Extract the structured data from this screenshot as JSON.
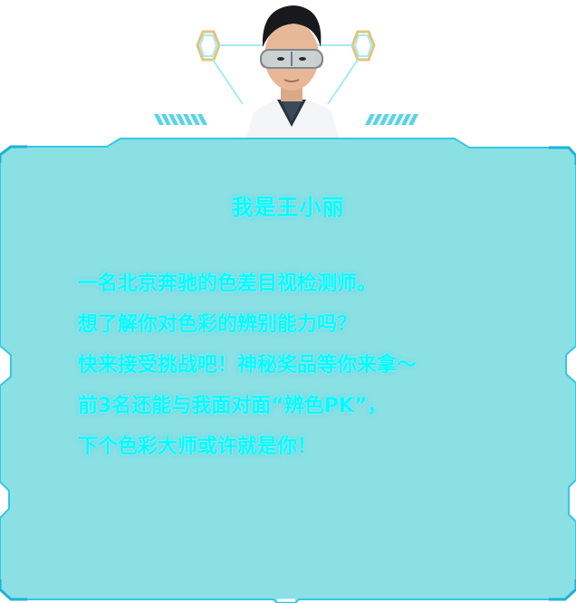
{
  "profile": {
    "title": "我是王小丽",
    "avatar_icon": "person-with-goggles-avatar",
    "lines": [
      "一名北京奔驰的色差目视检测师。",
      "想了解你对色彩的辨别能力吗？",
      "快来接受挑战吧！神秘奖品等你来拿～",
      "前3名还能与我面对面“辨色PK”，",
      "下个色彩大师或许就是你！"
    ]
  },
  "colors": {
    "panel_fill": "#8be0e4",
    "panel_border": "#35c8e6",
    "text": "#00fcff",
    "hex_outline": "#e2c57a",
    "accent_lines": "#59d4e6"
  }
}
